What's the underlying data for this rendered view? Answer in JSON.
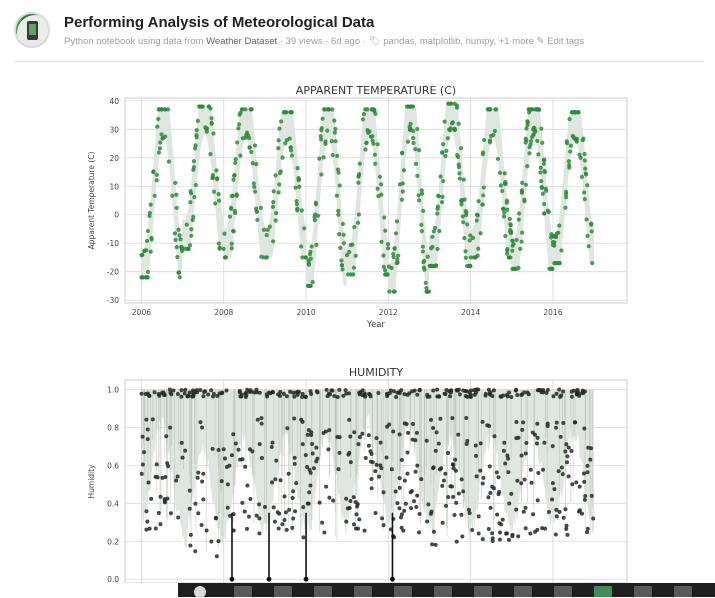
{
  "notebook": {
    "title": "Performing Analysis of Meteorological Data",
    "meta_prefix": "Python notebook using data from",
    "dataset": "Weather Dataset",
    "stats": "· 39 views · 6d ago ·",
    "tags": "pandas, matplotlib, numpy, +1 more",
    "edit_tags": "Edit tags",
    "tag_icon": "tag-icon",
    "edit_icon": "pencil-icon"
  },
  "colors": {
    "temp_points": "#2e8b3a",
    "humidity_points": "#222b25",
    "band": "#dfe6df",
    "grid": "#d9d9d9",
    "taskbar": "#1f1f1f"
  },
  "chart_data": [
    {
      "type": "scatter",
      "title": "APPARENT TEMPERATURE (C)",
      "xlabel": "Year",
      "ylabel": "Apparent Temperature (C)",
      "xlim": [
        2005.6,
        2017.8
      ],
      "ylim": [
        -31,
        41
      ],
      "xticks": [
        "2006",
        "2008",
        "2010",
        "2012",
        "2014",
        "2016"
      ],
      "yticks": [
        "-30",
        "-20",
        "-10",
        "0",
        "10",
        "20",
        "30",
        "40"
      ],
      "grid": true,
      "years": [
        2006,
        2007,
        2008,
        2009,
        2010,
        2011,
        2012,
        2013,
        2014,
        2015,
        2016
      ],
      "annual_max": [
        37,
        38,
        37,
        36,
        37,
        37,
        38,
        39,
        37,
        37,
        36
      ],
      "annual_min": [
        -22,
        -12,
        -15,
        -15,
        -25,
        -21,
        -27,
        -18,
        -15,
        -19,
        -17
      ],
      "daily_spread": 10
    },
    {
      "type": "scatter",
      "title": "HUMIDITY",
      "xlabel": "",
      "ylabel": "Humidity",
      "xlim": [
        2005.6,
        2017.8
      ],
      "ylim": [
        -0.02,
        1.05
      ],
      "yticks": [
        "0.0",
        "0.2",
        "0.4",
        "0.6",
        "0.8",
        "1.0"
      ],
      "grid": true,
      "upper": 1.0,
      "annual_min": [
        0.25,
        0.12,
        0.18,
        0.2,
        0.2,
        0.25,
        0.22,
        0.18,
        0.2,
        0.22,
        0.22
      ],
      "zero_drops": [
        2008.2,
        2009.1,
        2010.0,
        2012.1
      ]
    }
  ],
  "taskbar": {
    "items": [
      "start",
      "search",
      "task-view",
      "app1",
      "app2",
      "app3",
      "app4",
      "app5",
      "app6",
      "app7",
      "app8",
      "app9",
      "app10"
    ]
  }
}
